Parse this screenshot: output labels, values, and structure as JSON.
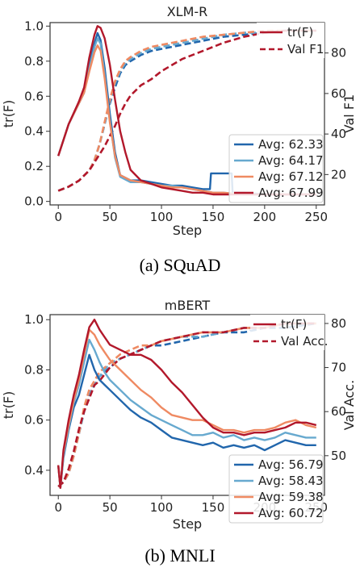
{
  "colors": {
    "dark_blue": "#2166ac",
    "light_blue": "#67a9cf",
    "orange": "#ef8a62",
    "red": "#b2182b",
    "axis": "#333333"
  },
  "chart_data": [
    {
      "type": "line",
      "title": "XLM-R",
      "xlabel": "Step",
      "ylabel": "tr(F)",
      "y2label": "Val F1",
      "caption": "(a) SQuAD",
      "xlim": [
        -8,
        258
      ],
      "ylim": [
        -0.02,
        1.02
      ],
      "y2lim": [
        5,
        95
      ],
      "xticks": [
        0,
        50,
        100,
        150,
        200,
        250
      ],
      "yticks": [
        0.0,
        0.2,
        0.4,
        0.6,
        0.8,
        1.0
      ],
      "y2ticks": [
        20,
        40,
        60,
        80
      ],
      "grid": false,
      "trace_series": [
        {
          "color": "dark_blue",
          "legend": "Avg: 62.33",
          "x": [
            0,
            10,
            20,
            25,
            30,
            35,
            38,
            41,
            45,
            50,
            55,
            60,
            70,
            80,
            90,
            100,
            110,
            120,
            130,
            140,
            147,
            148,
            160,
            168,
            169,
            180,
            200,
            220,
            240,
            250
          ],
          "y": [
            0.26,
            0.44,
            0.56,
            0.62,
            0.78,
            0.9,
            0.96,
            0.92,
            0.76,
            0.5,
            0.28,
            0.15,
            0.12,
            0.12,
            0.11,
            0.1,
            0.09,
            0.09,
            0.08,
            0.07,
            0.07,
            0.16,
            0.16,
            0.16,
            0.05,
            0.05,
            0.04,
            0.04,
            0.04,
            0.04
          ]
        },
        {
          "color": "light_blue",
          "legend": "Avg: 64.17",
          "x": [
            0,
            10,
            20,
            25,
            30,
            35,
            38,
            41,
            45,
            50,
            55,
            60,
            70,
            80,
            90,
            100,
            110,
            120,
            130,
            140,
            150,
            160,
            180,
            200,
            220,
            240,
            250
          ],
          "y": [
            0.26,
            0.44,
            0.56,
            0.62,
            0.76,
            0.88,
            0.93,
            0.9,
            0.72,
            0.46,
            0.25,
            0.14,
            0.11,
            0.11,
            0.1,
            0.09,
            0.09,
            0.08,
            0.07,
            0.06,
            0.05,
            0.05,
            0.04,
            0.04,
            0.04,
            0.04,
            0.04
          ]
        },
        {
          "color": "orange",
          "legend": "Avg: 67.12",
          "x": [
            0,
            10,
            20,
            25,
            30,
            35,
            38,
            41,
            45,
            50,
            55,
            60,
            70,
            80,
            90,
            100,
            110,
            120,
            130,
            140,
            150,
            160,
            180,
            200,
            220,
            240,
            250
          ],
          "y": [
            0.26,
            0.44,
            0.56,
            0.62,
            0.74,
            0.85,
            0.89,
            0.86,
            0.7,
            0.45,
            0.26,
            0.15,
            0.12,
            0.11,
            0.1,
            0.09,
            0.08,
            0.08,
            0.07,
            0.06,
            0.05,
            0.05,
            0.04,
            0.04,
            0.04,
            0.04,
            0.04
          ]
        },
        {
          "color": "red",
          "legend": "Avg: 67.99",
          "x": [
            0,
            10,
            20,
            25,
            30,
            35,
            38,
            41,
            45,
            50,
            55,
            60,
            65,
            70,
            80,
            90,
            100,
            110,
            120,
            130,
            140,
            150,
            160,
            180,
            200,
            220,
            240,
            250
          ],
          "y": [
            0.26,
            0.44,
            0.57,
            0.65,
            0.82,
            0.95,
            1.0,
            0.99,
            0.93,
            0.78,
            0.58,
            0.4,
            0.28,
            0.18,
            0.12,
            0.1,
            0.08,
            0.07,
            0.06,
            0.05,
            0.05,
            0.04,
            0.04,
            0.04,
            0.04,
            0.04,
            0.04,
            0.04
          ]
        }
      ],
      "val_series": [
        {
          "color": "dark_blue",
          "x": [
            0,
            10,
            20,
            30,
            35,
            40,
            45,
            50,
            55,
            60,
            65,
            70,
            80,
            90,
            100,
            120,
            140,
            160,
            180,
            200,
            220,
            250
          ],
          "y": [
            12,
            14,
            17,
            22,
            27,
            35,
            45,
            55,
            63,
            70,
            74,
            76,
            79,
            81,
            82,
            84,
            86,
            88,
            89,
            90,
            91,
            91
          ]
        },
        {
          "color": "light_blue",
          "x": [
            0,
            10,
            20,
            30,
            35,
            40,
            45,
            50,
            55,
            60,
            65,
            70,
            80,
            90,
            100,
            120,
            140,
            160,
            180,
            200,
            220,
            250
          ],
          "y": [
            12,
            14,
            17,
            22,
            27,
            35,
            45,
            56,
            65,
            71,
            75,
            77,
            80,
            82,
            83,
            85,
            87,
            89,
            90,
            90,
            91,
            91
          ]
        },
        {
          "color": "orange",
          "x": [
            0,
            10,
            20,
            30,
            35,
            40,
            45,
            50,
            55,
            60,
            65,
            70,
            80,
            90,
            100,
            120,
            140,
            160,
            180,
            200,
            220,
            250
          ],
          "y": [
            12,
            14,
            17,
            22,
            27,
            35,
            46,
            57,
            66,
            72,
            76,
            78,
            81,
            83,
            84,
            86,
            88,
            89,
            90,
            91,
            91,
            91
          ]
        },
        {
          "color": "red",
          "x": [
            0,
            10,
            20,
            30,
            35,
            40,
            45,
            50,
            55,
            60,
            65,
            70,
            80,
            90,
            100,
            110,
            120,
            140,
            160,
            180,
            200,
            220,
            250
          ],
          "y": [
            12,
            14,
            17,
            22,
            26,
            30,
            34,
            39,
            44,
            50,
            55,
            59,
            64,
            67,
            71,
            74,
            77,
            81,
            85,
            88,
            90,
            91,
            91
          ]
        }
      ],
      "legend_top": {
        "trace_label": "tr(F)",
        "val_label": "Val F1",
        "color": "red"
      },
      "legend_bottom": [
        "Avg: 62.33",
        "Avg: 64.17",
        "Avg: 67.12",
        "Avg: 67.99"
      ]
    },
    {
      "type": "line",
      "title": "mBERT",
      "xlabel": "Step",
      "ylabel": "tr(F)",
      "y2label": "Val Acc.",
      "caption": "(b) MNLI",
      "xlim": [
        -8,
        258
      ],
      "ylim": [
        0.3,
        1.02
      ],
      "y2lim": [
        41,
        82
      ],
      "xticks": [
        0,
        50,
        100,
        150,
        200,
        250
      ],
      "yticks": [
        0.4,
        0.6,
        0.8,
        1.0
      ],
      "y2ticks": [
        50,
        60,
        70,
        80
      ],
      "grid": false,
      "trace_series": [
        {
          "color": "dark_blue",
          "legend": "Avg: 56.79",
          "x": [
            0,
            2,
            5,
            10,
            15,
            20,
            25,
            30,
            35,
            40,
            45,
            50,
            60,
            70,
            80,
            90,
            100,
            110,
            120,
            130,
            140,
            150,
            160,
            170,
            180,
            190,
            200,
            210,
            220,
            230,
            240,
            250
          ],
          "y": [
            0.42,
            0.33,
            0.45,
            0.56,
            0.65,
            0.7,
            0.78,
            0.86,
            0.8,
            0.76,
            0.74,
            0.72,
            0.68,
            0.64,
            0.61,
            0.59,
            0.56,
            0.53,
            0.52,
            0.51,
            0.5,
            0.51,
            0.49,
            0.5,
            0.49,
            0.5,
            0.48,
            0.5,
            0.52,
            0.51,
            0.5,
            0.5
          ]
        },
        {
          "color": "light_blue",
          "legend": "Avg: 58.43",
          "x": [
            0,
            2,
            5,
            10,
            15,
            20,
            25,
            30,
            35,
            40,
            45,
            50,
            60,
            70,
            80,
            90,
            100,
            110,
            120,
            130,
            140,
            150,
            160,
            170,
            180,
            190,
            200,
            210,
            220,
            230,
            240,
            250
          ],
          "y": [
            0.42,
            0.33,
            0.46,
            0.57,
            0.67,
            0.74,
            0.83,
            0.92,
            0.88,
            0.83,
            0.79,
            0.76,
            0.72,
            0.68,
            0.65,
            0.62,
            0.6,
            0.58,
            0.56,
            0.54,
            0.54,
            0.55,
            0.53,
            0.54,
            0.52,
            0.53,
            0.52,
            0.53,
            0.55,
            0.54,
            0.53,
            0.53
          ]
        },
        {
          "color": "orange",
          "legend": "Avg: 59.38",
          "x": [
            0,
            2,
            5,
            10,
            15,
            20,
            25,
            30,
            35,
            40,
            45,
            50,
            60,
            70,
            80,
            90,
            100,
            110,
            120,
            130,
            140,
            150,
            160,
            170,
            180,
            190,
            200,
            210,
            220,
            230,
            240,
            250
          ],
          "y": [
            0.42,
            0.33,
            0.47,
            0.58,
            0.68,
            0.76,
            0.86,
            0.96,
            0.94,
            0.9,
            0.87,
            0.84,
            0.8,
            0.76,
            0.72,
            0.69,
            0.65,
            0.62,
            0.61,
            0.6,
            0.6,
            0.58,
            0.56,
            0.56,
            0.55,
            0.56,
            0.56,
            0.57,
            0.59,
            0.6,
            0.58,
            0.57
          ]
        },
        {
          "color": "red",
          "legend": "Avg: 60.72",
          "x": [
            0,
            2,
            5,
            10,
            15,
            20,
            25,
            30,
            35,
            40,
            45,
            50,
            60,
            70,
            80,
            90,
            100,
            110,
            120,
            130,
            140,
            150,
            160,
            170,
            180,
            190,
            200,
            210,
            220,
            230,
            240,
            250
          ],
          "y": [
            0.42,
            0.33,
            0.48,
            0.6,
            0.7,
            0.78,
            0.88,
            0.97,
            1.0,
            0.96,
            0.93,
            0.9,
            0.88,
            0.86,
            0.86,
            0.84,
            0.8,
            0.75,
            0.71,
            0.66,
            0.61,
            0.57,
            0.55,
            0.55,
            0.54,
            0.55,
            0.55,
            0.56,
            0.57,
            0.59,
            0.59,
            0.58
          ]
        }
      ],
      "val_series": [
        {
          "color": "dark_blue",
          "x": [
            0,
            5,
            10,
            15,
            20,
            25,
            30,
            35,
            40,
            50,
            60,
            70,
            80,
            90,
            100,
            120,
            140,
            160,
            180,
            200,
            220,
            250
          ],
          "y": [
            43,
            44,
            46,
            50,
            55,
            60,
            64,
            66,
            68,
            70,
            72,
            73,
            74,
            75,
            75,
            76,
            77,
            78,
            78,
            79,
            79,
            80
          ]
        },
        {
          "color": "light_blue",
          "x": [
            0,
            5,
            10,
            15,
            20,
            25,
            30,
            35,
            40,
            50,
            60,
            70,
            80,
            90,
            100,
            120,
            140,
            160,
            180,
            200,
            220,
            250
          ],
          "y": [
            43,
            44,
            46,
            50,
            55,
            60,
            64,
            66,
            68,
            71,
            72,
            73,
            74,
            75,
            76,
            77,
            77,
            78,
            79,
            79,
            80,
            80
          ]
        },
        {
          "color": "orange",
          "x": [
            0,
            5,
            10,
            15,
            20,
            25,
            30,
            35,
            40,
            50,
            60,
            70,
            80,
            90,
            100,
            120,
            140,
            160,
            180,
            200,
            220,
            250
          ],
          "y": [
            43,
            44,
            46,
            50,
            55,
            61,
            65,
            67,
            69,
            71,
            73,
            74,
            75,
            75,
            76,
            77,
            78,
            78,
            79,
            79,
            80,
            80
          ]
        },
        {
          "color": "red",
          "x": [
            0,
            5,
            10,
            15,
            20,
            25,
            30,
            35,
            40,
            50,
            60,
            70,
            80,
            90,
            100,
            120,
            140,
            160,
            180,
            200,
            220,
            250
          ],
          "y": [
            43,
            44,
            47,
            51,
            56,
            60,
            63,
            66,
            67,
            70,
            72,
            73,
            74,
            75,
            76,
            77,
            78,
            78,
            79,
            79,
            80,
            80
          ]
        }
      ],
      "legend_top": {
        "trace_label": "tr(F)",
        "val_label": "Val Acc.",
        "color": "red"
      },
      "legend_bottom": [
        "Avg: 56.79",
        "Avg: 58.43",
        "Avg: 59.38",
        "Avg: 60.72"
      ]
    }
  ]
}
